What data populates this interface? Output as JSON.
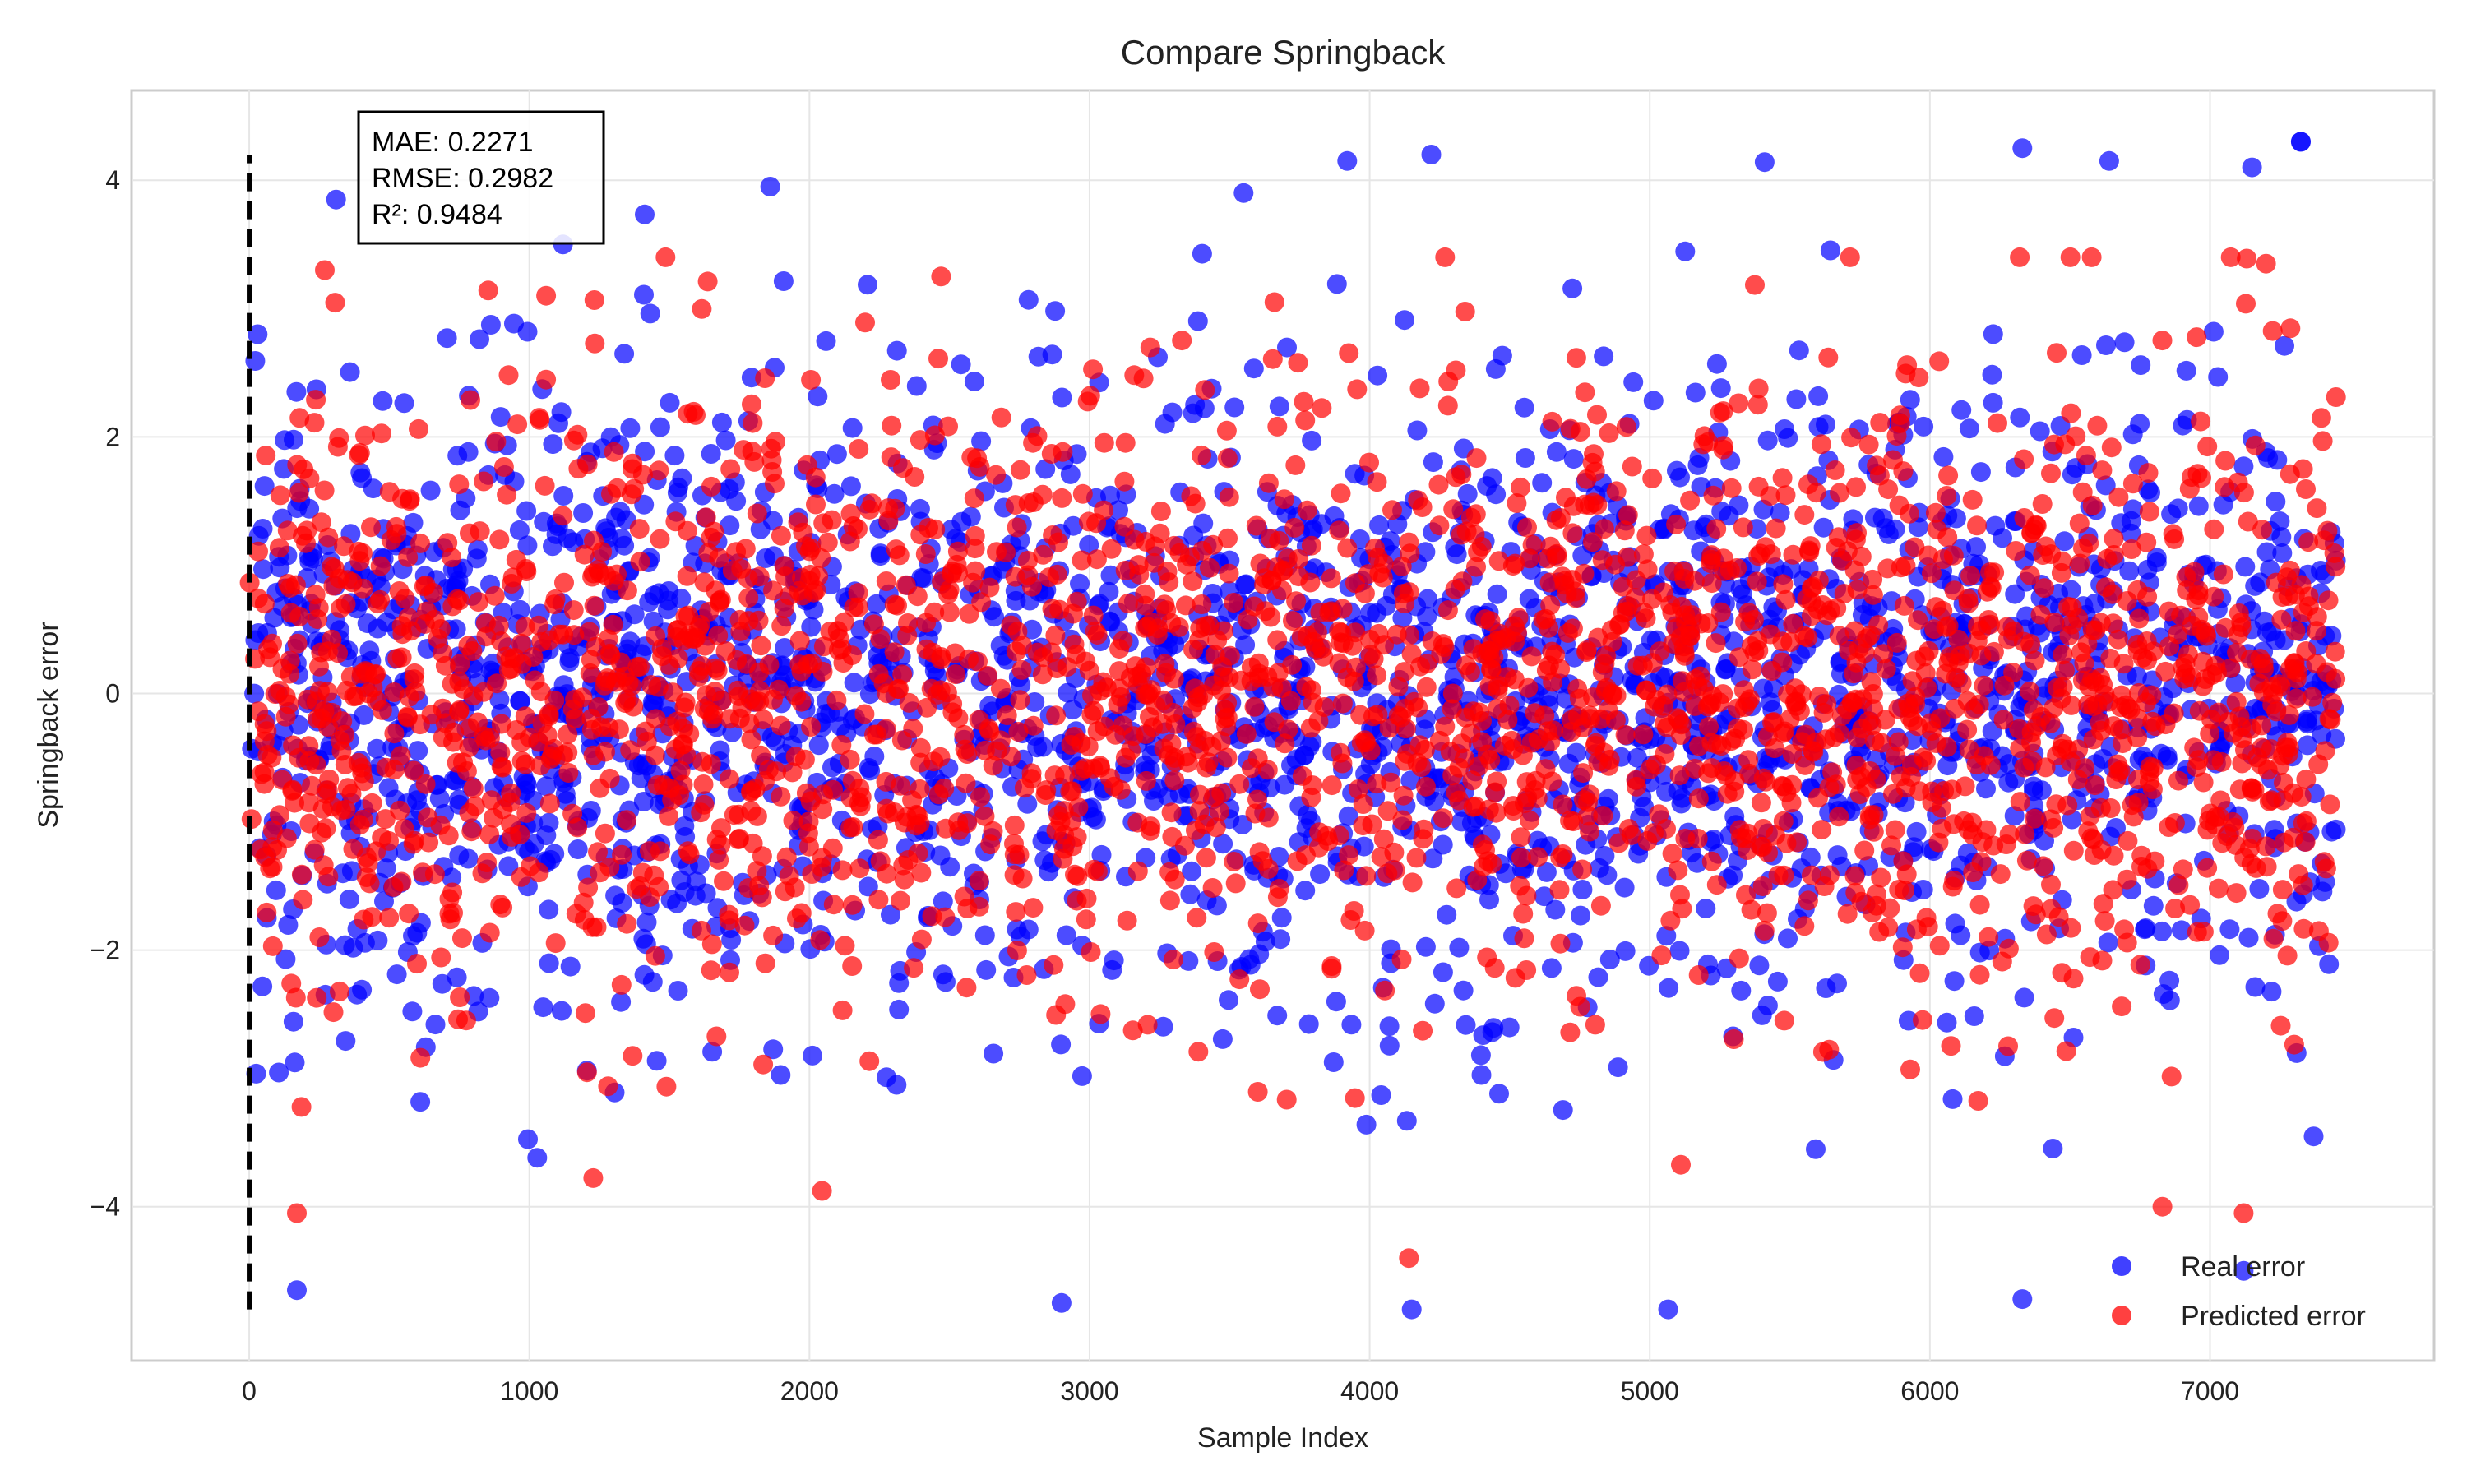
{
  "chart_data": {
    "type": "scatter",
    "title": "Compare Springback",
    "xlabel": "Sample Index",
    "ylabel": "Springback error",
    "xlim": [
      -420,
      7800
    ],
    "ylim": [
      -5.2,
      4.7
    ],
    "x_ticks": [
      0,
      1000,
      2000,
      3000,
      4000,
      5000,
      6000,
      7000
    ],
    "y_ticks": [
      -4,
      -2,
      0,
      2,
      4
    ],
    "grid": true,
    "legend_position": "lower-right",
    "vertical_reference_line": {
      "x": 0,
      "y_range": [
        -4.8,
        4.2
      ],
      "style": "dashed",
      "color": "#000000"
    },
    "stats_box": {
      "lines": [
        "MAE: 0.2271",
        "RMSE: 0.2982",
        "R²: 0.9484"
      ],
      "position": "upper-left"
    },
    "sample_count": 7450,
    "series": [
      {
        "name": "Real error",
        "color": "#0000ff",
        "alpha": 0.7,
        "distribution": {
          "x_range": [
            0,
            7450
          ],
          "mean": 0,
          "std": 1.2,
          "y_range": [
            -4.8,
            4.3
          ]
        },
        "visible_extremes": [
          {
            "x": 30,
            "y": 2.8
          },
          {
            "x": 170,
            "y": -4.65
          },
          {
            "x": 310,
            "y": 3.85
          },
          {
            "x": 1120,
            "y": 3.5
          },
          {
            "x": 1860,
            "y": 3.95
          },
          {
            "x": 2900,
            "y": -4.75
          },
          {
            "x": 3550,
            "y": 3.9
          },
          {
            "x": 3920,
            "y": 4.15
          },
          {
            "x": 4150,
            "y": -4.8
          },
          {
            "x": 4220,
            "y": 4.2
          },
          {
            "x": 6330,
            "y": 4.25
          },
          {
            "x": 6330,
            "y": -4.72
          },
          {
            "x": 6640,
            "y": 4.15
          },
          {
            "x": 7150,
            "y": 4.1
          },
          {
            "x": 7120,
            "y": -4.5
          }
        ]
      },
      {
        "name": "Predicted error",
        "color": "#ff0000",
        "alpha": 0.7,
        "distribution": {
          "x_range": [
            0,
            7450
          ],
          "mean": 0,
          "std": 1.15,
          "y_range": [
            -4.4,
            3.4
          ]
        },
        "visible_extremes": [
          {
            "x": 270,
            "y": 3.3
          },
          {
            "x": 170,
            "y": -4.05
          },
          {
            "x": 1060,
            "y": 3.1
          },
          {
            "x": 2470,
            "y": 3.25
          },
          {
            "x": 3660,
            "y": 3.05
          },
          {
            "x": 4140,
            "y": -4.4
          },
          {
            "x": 6830,
            "y": -4.0
          },
          {
            "x": 7120,
            "y": -4.05
          },
          {
            "x": 7200,
            "y": 3.35
          }
        ]
      }
    ]
  }
}
